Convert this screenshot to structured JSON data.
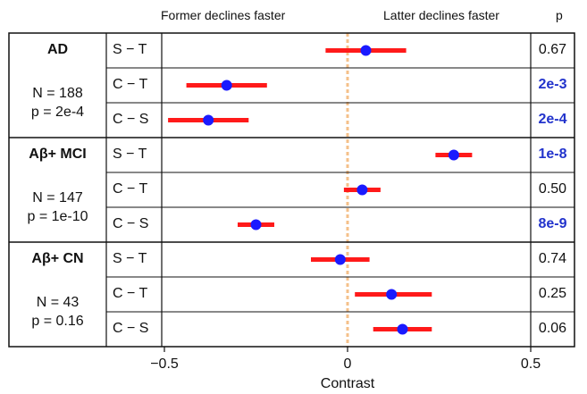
{
  "header": {
    "left_label": "Former declines faster",
    "right_label": "Latter declines faster",
    "p_label": "p"
  },
  "groups": [
    {
      "name": "AD",
      "n": "N = 188",
      "p": "p = 2e-4"
    },
    {
      "name": "Aβ+ MCI",
      "n": "N = 147",
      "p": "p = 1e-10"
    },
    {
      "name": "Aβ+ CN",
      "n": "N = 43",
      "p": "p = 0.16"
    }
  ],
  "chart_data": {
    "type": "scatter",
    "xlabel": "Contrast",
    "xlim": [
      -0.5,
      0.5
    ],
    "xticks": [
      -0.5,
      0,
      0.5
    ],
    "xtick_labels": [
      "−0.5",
      "0",
      "0.5"
    ],
    "reference_line": 0,
    "rows": [
      {
        "group": "AD",
        "comparison": "S − T",
        "estimate": 0.05,
        "ci": [
          -0.06,
          0.16
        ],
        "p": "0.67",
        "significant": false
      },
      {
        "group": "AD",
        "comparison": "C − T",
        "estimate": -0.33,
        "ci": [
          -0.44,
          -0.22
        ],
        "p": "2e-3",
        "significant": true
      },
      {
        "group": "AD",
        "comparison": "C − S",
        "estimate": -0.38,
        "ci": [
          -0.49,
          -0.27
        ],
        "p": "2e-4",
        "significant": true
      },
      {
        "group": "Aβ+ MCI",
        "comparison": "S − T",
        "estimate": 0.29,
        "ci": [
          0.24,
          0.34
        ],
        "p": "1e-8",
        "significant": true
      },
      {
        "group": "Aβ+ MCI",
        "comparison": "C − T",
        "estimate": 0.04,
        "ci": [
          -0.01,
          0.09
        ],
        "p": "0.50",
        "significant": false
      },
      {
        "group": "Aβ+ MCI",
        "comparison": "C − S",
        "estimate": -0.25,
        "ci": [
          -0.3,
          -0.2
        ],
        "p": "8e-9",
        "significant": true
      },
      {
        "group": "Aβ+ CN",
        "comparison": "S − T",
        "estimate": -0.02,
        "ci": [
          -0.1,
          0.06
        ],
        "p": "0.74",
        "significant": false
      },
      {
        "group": "Aβ+ CN",
        "comparison": "C − T",
        "estimate": 0.12,
        "ci": [
          0.02,
          0.23
        ],
        "p": "0.25",
        "significant": false
      },
      {
        "group": "Aβ+ CN",
        "comparison": "C − S",
        "estimate": 0.15,
        "ci": [
          0.07,
          0.23
        ],
        "p": "0.06",
        "significant": false
      }
    ],
    "colors": {
      "point": "#1a1aff",
      "interval": "#ff1a1a",
      "reference_line": "#f5c08a",
      "significant_p": "#2233cc"
    }
  }
}
